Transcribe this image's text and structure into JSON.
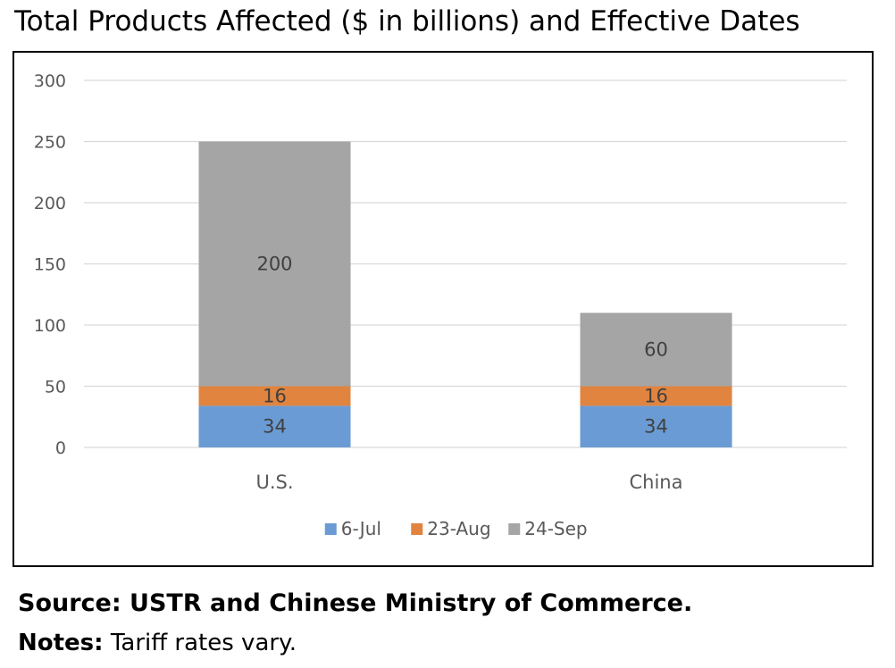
{
  "title": "Total Products Affected ($ in billions) and Effective Dates",
  "source": "Source: USTR and Chinese Ministry of Commerce.",
  "notes": {
    "label": "Notes:",
    "text": " Tariff rates vary."
  },
  "chart_data": {
    "type": "bar",
    "stacked": true,
    "categories": [
      "U.S.",
      "China"
    ],
    "series": [
      {
        "name": "6-Jul",
        "values": [
          34,
          34
        ],
        "color": "#6a9bd4"
      },
      {
        "name": "23-Aug",
        "values": [
          16,
          16
        ],
        "color": "#e0843f"
      },
      {
        "name": "24-Sep",
        "values": [
          200,
          60
        ],
        "color": "#a5a5a5"
      }
    ],
    "ylim": [
      0,
      300
    ],
    "yticks": [
      0,
      50,
      100,
      150,
      200,
      250,
      300
    ],
    "grid": true,
    "legend": "bottom-center"
  }
}
